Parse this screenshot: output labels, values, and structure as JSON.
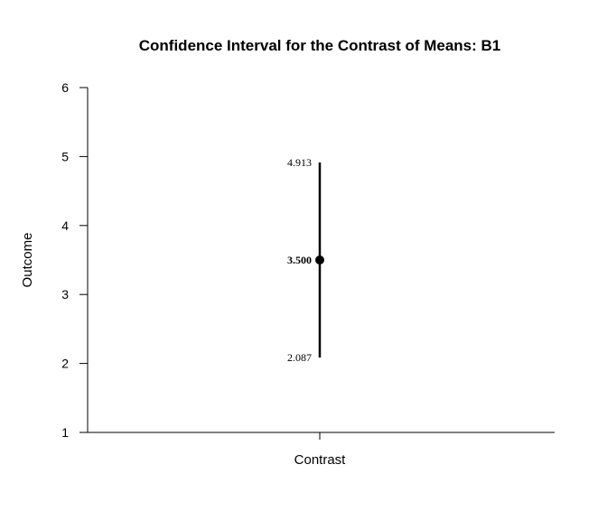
{
  "chart_data": {
    "type": "scatter",
    "title": "Confidence Interval for the Contrast of Means: B1",
    "xlabel": "Contrast",
    "ylabel": "Outcome",
    "ylim": [
      1,
      6
    ],
    "yticks": [
      "1",
      "2",
      "3",
      "4",
      "5",
      "6"
    ],
    "categories": [
      "Contrast"
    ],
    "estimate": 3.5,
    "lower": 2.087,
    "upper": 4.913,
    "estimate_label": "3.500",
    "lower_label": "2.087",
    "upper_label": "4.913",
    "grid": false,
    "color": "#000000"
  }
}
